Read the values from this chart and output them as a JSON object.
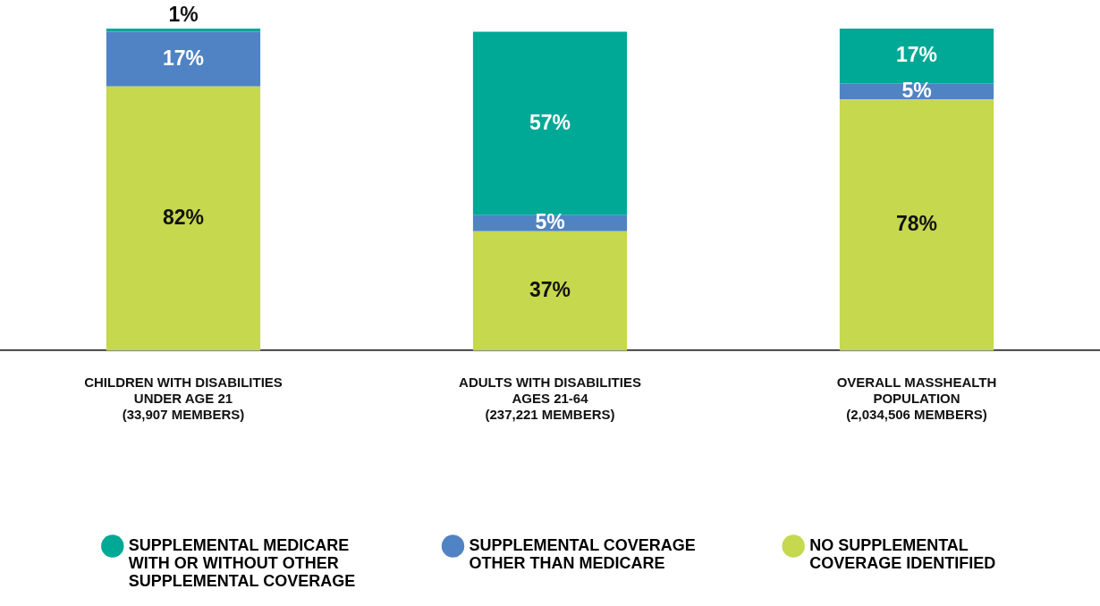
{
  "chart_data": {
    "type": "bar",
    "stacked": true,
    "categories": [
      "CHILDREN WITH DISABILITIES\nUNDER AGE 21\n(33,907 MEMBERS)",
      "ADULTS WITH DISABILITIES\nAGES 21-64\n(237,221 MEMBERS)",
      "OVERALL MASSHEALTH\nPOPULATION\n(2,034,506 MEMBERS)"
    ],
    "ylim": [
      0,
      100
    ],
    "grid": false,
    "legend": "bottom",
    "tick_labels": "x",
    "series": [
      {
        "name": "NO SUPPLEMENTAL COVERAGE IDENTIFIED",
        "color": "#c5d84e",
        "values": [
          82,
          37,
          78
        ],
        "value_labels": [
          "82%",
          "37%",
          "78%"
        ]
      },
      {
        "name": "SUPPLEMENTAL COVERAGE OTHER THAN MEDICARE",
        "color": "#5083c4",
        "values": [
          17,
          5,
          5
        ],
        "value_labels": [
          "17%",
          "5%",
          "5%"
        ]
      },
      {
        "name": "SUPPLEMENTAL MEDICARE WITH OR WITHOUT OTHER SUPPLEMENTAL COVERAGE",
        "color": "#00a896",
        "values": [
          1,
          57,
          17
        ],
        "value_labels": [
          "1%",
          "57%",
          "17%"
        ]
      }
    ]
  }
}
